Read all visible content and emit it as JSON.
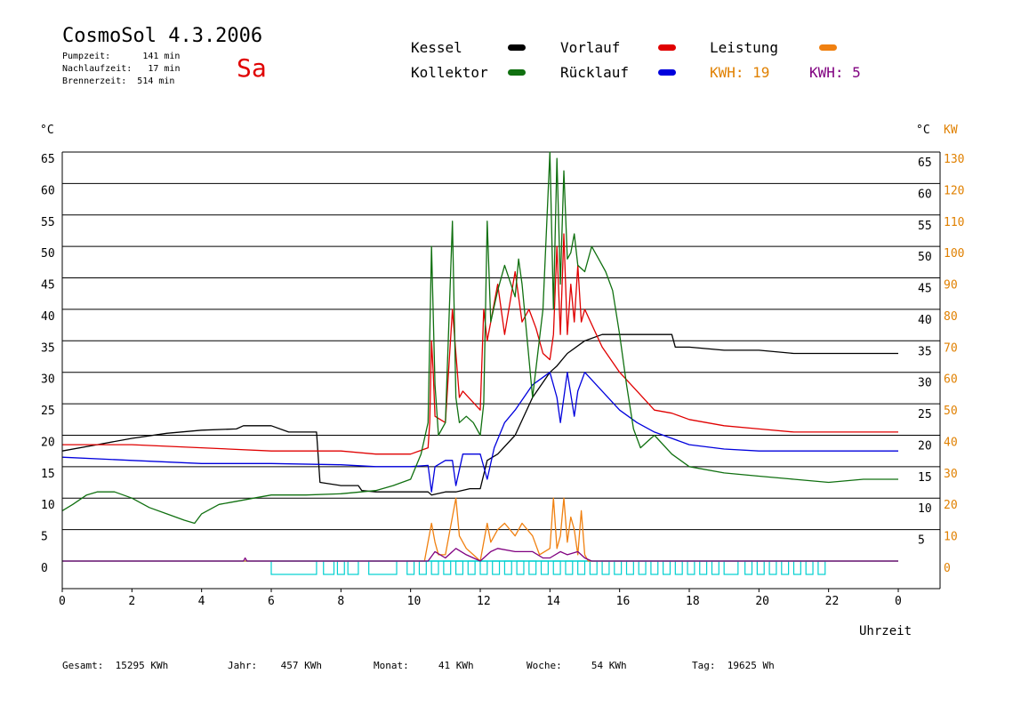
{
  "header": {
    "title": "CosmoSol 4.3.2006",
    "day": "Sa",
    "stats": [
      {
        "label": "Pumpzeit:",
        "value": "141 min"
      },
      {
        "label": "Nachlaufzeit:",
        "value": "17 min"
      },
      {
        "label": "Brennerzeit:",
        "value": "514 min"
      }
    ]
  },
  "legend": {
    "kessel": {
      "label": "Kessel",
      "color": "#000000"
    },
    "vorlauf": {
      "label": "Vorlauf",
      "color": "#e00000"
    },
    "leistung": {
      "label": "Leistung",
      "color": "#f08010"
    },
    "kollektor": {
      "label": "Kollektor",
      "color": "#107010"
    },
    "ruecklauf": {
      "label": "Rücklauf",
      "color": "#0000dd"
    },
    "kwh_orange": {
      "label": "KWH:",
      "value": "19",
      "color": "#e08000"
    },
    "kwh_purple": {
      "label": "KWH:",
      "value": "5",
      "color": "#800080"
    }
  },
  "footer": {
    "gesamt": {
      "label": "Gesamt:",
      "value": "15295 KWh"
    },
    "jahr": {
      "label": "Jahr:",
      "value": "457 KWh"
    },
    "monat": {
      "label": "Monat:",
      "value": "41 KWh"
    },
    "woche": {
      "label": "Woche:",
      "value": "54 KWh"
    },
    "tag": {
      "label": "Tag:",
      "value": "19625 Wh"
    }
  },
  "chart_data": {
    "type": "line",
    "xlabel": "Uhrzeit",
    "ylabel_left": "°C",
    "ylabel_right": "°C",
    "ylabel_right2": "KW",
    "grid": true,
    "xlim": [
      0,
      24
    ],
    "ylim": [
      0,
      65
    ],
    "x_ticks": [
      "0",
      "2",
      "4",
      "6",
      "8",
      "10",
      "12",
      "14",
      "16",
      "18",
      "20",
      "22",
      "0"
    ],
    "y_ticks": [
      0,
      5,
      10,
      15,
      20,
      25,
      30,
      35,
      40,
      45,
      50,
      55,
      60,
      65
    ],
    "y_ticks_right2": [
      0,
      10,
      20,
      30,
      40,
      50,
      60,
      70,
      80,
      90,
      100,
      110,
      120,
      130
    ],
    "series": [
      {
        "name": "Kessel",
        "color": "#000000",
        "x": [
          0,
          1,
          2,
          3,
          4,
          5,
          5.2,
          6,
          6.5,
          7.3,
          7.4,
          8,
          8.5,
          8.6,
          9,
          10,
          10.5,
          10.6,
          11,
          11.3,
          11.7,
          12,
          12.2,
          12.5,
          13,
          13.5,
          14,
          14.2,
          14.5,
          15,
          15.5,
          16,
          17,
          17.5,
          17.6,
          18,
          19,
          20,
          21,
          22,
          23,
          23.5,
          24
        ],
        "values": [
          17.5,
          18.5,
          19.5,
          20.3,
          20.8,
          21,
          21.5,
          21.5,
          20.5,
          20.5,
          12.5,
          12,
          12,
          11.2,
          11,
          11,
          11,
          10.5,
          11,
          11,
          11.5,
          11.5,
          16,
          17,
          20,
          26,
          30,
          31,
          33,
          35,
          36,
          36,
          36,
          36,
          34,
          34,
          33.5,
          33.5,
          33,
          33,
          33,
          33,
          33
        ]
      },
      {
        "name": "Vorlauf",
        "color": "#e00000",
        "x": [
          0,
          2,
          4,
          6,
          8,
          9,
          10,
          10.5,
          10.55,
          10.6,
          10.65,
          10.7,
          11,
          11.2,
          11.3,
          11.4,
          11.5,
          12,
          12.1,
          12.2,
          12.3,
          12.5,
          12.7,
          13,
          13.2,
          13.4,
          13.6,
          13.8,
          14,
          14.1,
          14.2,
          14.3,
          14.4,
          14.5,
          14.6,
          14.7,
          14.8,
          14.9,
          15,
          15.5,
          16,
          16.5,
          17,
          17.5,
          18,
          19,
          20,
          21,
          22,
          23,
          24
        ],
        "values": [
          18.5,
          18.5,
          18,
          17.5,
          17.5,
          17,
          17,
          18,
          22,
          35,
          30,
          23,
          22,
          40,
          33,
          26,
          27,
          24,
          40,
          35,
          38,
          44,
          36,
          46,
          38,
          40,
          37,
          33,
          32,
          36,
          50,
          36,
          52,
          36,
          44,
          38,
          47,
          38,
          40,
          34,
          30,
          27,
          24,
          23.5,
          22.5,
          21.5,
          21,
          20.5,
          20.5,
          20.5,
          20.5
        ]
      },
      {
        "name": "Rücklauf",
        "color": "#0000dd",
        "x": [
          0,
          2,
          4,
          6,
          8,
          9,
          10,
          10.5,
          10.6,
          10.7,
          11,
          11.2,
          11.3,
          11.5,
          12,
          12.2,
          12.4,
          12.7,
          13,
          13.5,
          14,
          14.2,
          14.3,
          14.4,
          14.5,
          14.7,
          14.8,
          15,
          15.5,
          16,
          16.5,
          17,
          17.5,
          18,
          19,
          20,
          21,
          22,
          23,
          24
        ],
        "values": [
          16.5,
          16,
          15.5,
          15.5,
          15.3,
          15,
          15,
          15.2,
          11,
          15,
          16,
          16,
          12,
          17,
          17,
          13,
          18,
          22,
          24,
          28,
          30,
          26,
          22,
          26,
          30,
          23,
          27,
          30,
          27,
          24,
          22,
          20.5,
          19.5,
          18.5,
          17.8,
          17.5,
          17.5,
          17.5,
          17.5,
          17.5
        ]
      },
      {
        "name": "Kollektor",
        "color": "#107010",
        "x": [
          0,
          0.3,
          0.7,
          1,
          1.5,
          2,
          2.5,
          3,
          3.5,
          3.8,
          4,
          4.5,
          5,
          5.5,
          6,
          7,
          8,
          9,
          9.5,
          10,
          10.3,
          10.5,
          10.6,
          10.7,
          10.8,
          11,
          11.2,
          11.3,
          11.4,
          11.6,
          11.8,
          12,
          12.1,
          12.2,
          12.3,
          12.5,
          12.7,
          13,
          13.1,
          13.2,
          13.5,
          13.8,
          14,
          14.1,
          14.2,
          14.3,
          14.4,
          14.5,
          14.6,
          14.7,
          14.8,
          15,
          15.2,
          15.4,
          15.6,
          15.8,
          16,
          16.2,
          16.4,
          16.6,
          16.8,
          17,
          17.5,
          18,
          19,
          20,
          21,
          22,
          23,
          24
        ],
        "values": [
          8,
          9,
          10.5,
          11,
          11,
          10,
          8.5,
          7.5,
          6.5,
          6,
          7.5,
          9,
          9.5,
          10,
          10.5,
          10.5,
          10.7,
          11.2,
          12,
          13,
          17,
          22,
          50,
          28,
          20,
          22,
          54,
          26,
          22,
          23,
          22,
          20,
          25,
          54,
          38,
          43,
          47,
          42,
          48,
          44,
          26,
          40,
          65,
          40,
          64,
          44,
          62,
          48,
          49,
          52,
          47,
          46,
          50,
          48,
          46,
          43,
          36,
          28,
          21,
          18,
          19,
          20,
          17,
          15,
          14,
          13.5,
          13,
          12.5,
          13,
          13
        ]
      },
      {
        "name": "Leistung",
        "color": "#f08010",
        "x": [
          0,
          10.4,
          10.6,
          10.7,
          10.8,
          11,
          11.3,
          11.4,
          11.6,
          11.8,
          12,
          12.2,
          12.3,
          12.5,
          12.7,
          13,
          13.2,
          13.5,
          13.7,
          14,
          14.1,
          14.2,
          14.3,
          14.4,
          14.5,
          14.6,
          14.7,
          14.8,
          14.9,
          15,
          15.1,
          24
        ],
        "values": [
          0,
          0,
          6,
          3,
          1,
          1,
          10,
          4,
          2,
          1,
          0,
          6,
          3,
          5,
          6,
          4,
          6,
          4,
          1,
          2,
          10,
          2,
          4,
          10,
          3,
          7,
          5,
          1,
          8,
          1,
          0,
          0
        ]
      },
      {
        "name": "KWH Violett",
        "color": "#800080",
        "x": [
          0,
          5.2,
          5.25,
          5.3,
          10.5,
          10.7,
          11,
          11.3,
          11.6,
          12,
          12.3,
          12.5,
          13,
          13.5,
          13.8,
          14,
          14.3,
          14.5,
          14.8,
          15,
          15.2,
          24
        ],
        "values": [
          0,
          0,
          0.5,
          0,
          0,
          1.5,
          0.5,
          2,
          1,
          0,
          1.5,
          2,
          1.5,
          1.5,
          0.5,
          0.5,
          1.5,
          1,
          1.5,
          0.5,
          0,
          0
        ]
      }
    ],
    "pump_blocks": [
      [
        6,
        7.3
      ],
      [
        7.5,
        7.8
      ],
      [
        7.9,
        8.1
      ],
      [
        8.2,
        8.5
      ],
      [
        8.8,
        9.6
      ],
      [
        9.9,
        10.1
      ],
      [
        10.25,
        10.45
      ],
      [
        10.6,
        10.8
      ],
      [
        10.95,
        11.15
      ],
      [
        11.3,
        11.5
      ],
      [
        11.65,
        11.85
      ],
      [
        12,
        12.2
      ],
      [
        12.35,
        12.55
      ],
      [
        12.7,
        12.9
      ],
      [
        13.05,
        13.25
      ],
      [
        13.4,
        13.6
      ],
      [
        13.75,
        13.95
      ],
      [
        14.1,
        14.3
      ],
      [
        14.45,
        14.65
      ],
      [
        14.8,
        15
      ],
      [
        15.15,
        15.35
      ],
      [
        15.5,
        15.7
      ],
      [
        15.85,
        16.05
      ],
      [
        16.2,
        16.4
      ],
      [
        16.55,
        16.75
      ],
      [
        16.9,
        17.1
      ],
      [
        17.25,
        17.45
      ],
      [
        17.6,
        17.8
      ],
      [
        17.95,
        18.15
      ],
      [
        18.3,
        18.5
      ],
      [
        18.65,
        18.85
      ],
      [
        19,
        19.4
      ],
      [
        19.6,
        19.8
      ],
      [
        19.95,
        20.15
      ],
      [
        20.3,
        20.5
      ],
      [
        20.65,
        20.85
      ],
      [
        21,
        21.2
      ],
      [
        21.35,
        21.55
      ],
      [
        21.7,
        21.9
      ]
    ]
  }
}
